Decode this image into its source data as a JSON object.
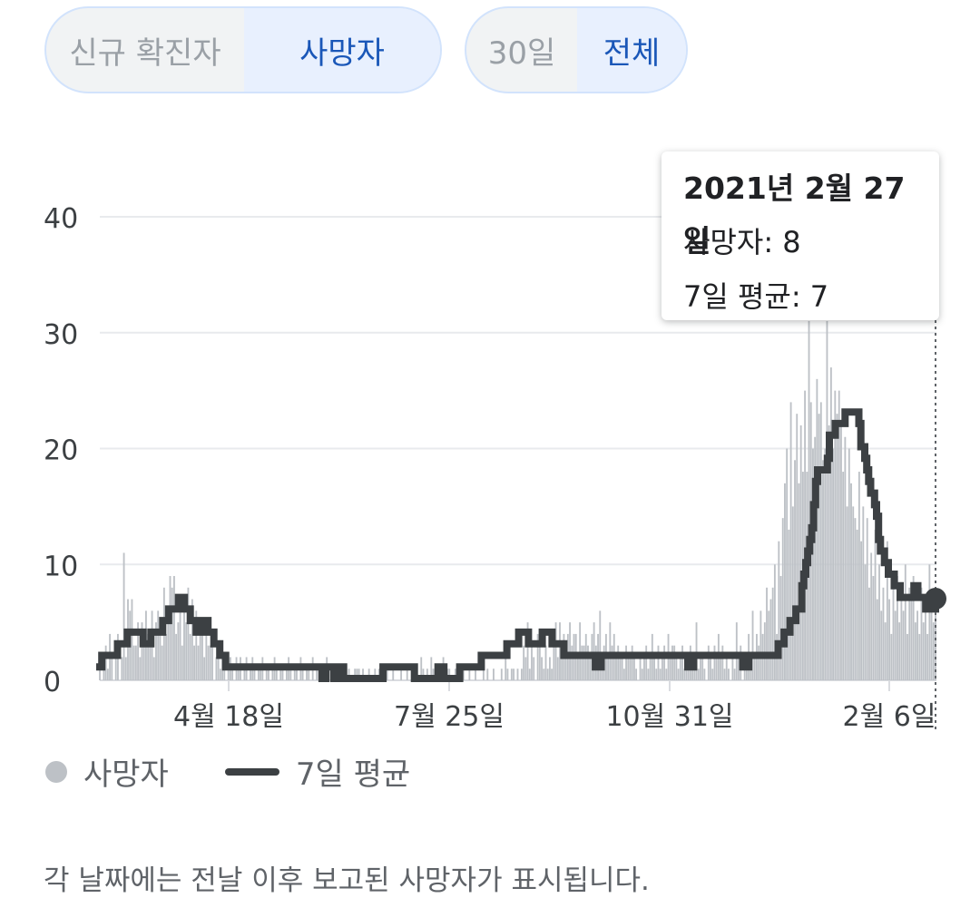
{
  "toggles": {
    "metric": {
      "options": [
        "신규 확진자",
        "사망자"
      ],
      "selected": "사망자"
    },
    "range": {
      "options": [
        "30일",
        "전체"
      ],
      "selected": "전체"
    }
  },
  "tooltip": {
    "date": "2021년 2월 27일",
    "deaths": "사망자: 8",
    "avg": "7일 평균: 7"
  },
  "legend": {
    "deaths": "사망자",
    "avg": "7일 평균"
  },
  "footnote": "각 날짜에는 전날 이후 보고된 사망자가 표시됩니다.",
  "colors": {
    "bars": "#bdc1c6",
    "line": "#3c4043",
    "accent": "#1a57b8",
    "grid": "#e8eaed"
  },
  "chart_data": {
    "type": "bar",
    "ylim": [
      0,
      40
    ],
    "yticks": [
      0,
      10,
      20,
      30,
      40
    ],
    "xticks": [
      "4월 18일",
      "7월 25일",
      "10월 31일",
      "2월 6일"
    ],
    "series": [
      {
        "name": "사망자",
        "values": [
          2,
          0,
          2,
          3,
          1,
          4,
          2,
          0,
          3,
          4,
          0,
          2,
          11,
          2,
          7,
          6,
          7,
          3,
          3,
          5,
          2,
          5,
          3,
          6,
          4,
          3,
          6,
          2,
          5,
          6,
          4,
          3,
          8,
          4,
          5,
          9,
          8,
          9,
          4,
          5,
          6,
          3,
          7,
          5,
          8,
          4,
          7,
          3,
          6,
          3,
          4,
          5,
          2,
          4,
          3,
          3,
          4,
          0,
          2,
          2,
          1,
          2,
          1,
          0,
          2,
          2,
          1,
          0,
          2,
          1,
          2,
          0,
          1,
          2,
          0,
          1,
          2,
          1,
          0,
          1,
          1,
          2,
          0,
          1,
          1,
          0,
          1,
          2,
          1,
          0,
          1,
          1,
          0,
          1,
          2,
          1,
          0,
          1,
          1,
          0,
          2,
          1,
          0,
          1,
          1,
          0,
          2,
          0,
          1,
          1,
          0,
          1,
          1,
          2,
          0,
          1,
          0,
          1,
          0,
          0,
          1,
          1,
          0,
          0,
          1,
          0,
          0,
          1,
          1,
          1,
          0,
          1,
          0,
          0,
          1,
          0,
          0,
          1,
          0,
          1,
          0,
          0,
          0,
          1,
          0,
          0,
          1,
          0,
          0,
          0,
          1,
          0,
          0,
          1,
          0,
          0,
          1,
          0,
          0,
          0,
          2,
          1,
          0,
          1,
          0,
          2,
          1,
          1,
          0,
          1,
          1,
          2,
          0,
          1,
          1,
          0,
          0,
          1,
          0,
          0,
          0,
          1,
          0,
          0,
          1,
          0,
          0,
          1,
          0,
          0,
          0,
          2,
          0,
          1,
          0,
          0,
          1,
          0,
          0,
          0,
          1,
          0,
          2,
          1,
          0,
          1,
          1,
          0,
          1,
          0,
          1,
          3,
          2,
          5,
          1,
          3,
          2,
          0,
          4,
          3,
          2,
          1,
          3,
          1,
          2,
          1,
          4,
          5,
          2,
          5,
          3,
          4,
          2,
          4,
          5,
          3,
          4,
          4,
          2,
          5,
          3,
          3,
          4,
          3,
          2,
          4,
          5,
          3,
          4,
          6,
          2,
          3,
          4,
          2,
          5,
          3,
          4,
          2,
          3,
          2,
          2,
          1,
          3,
          2,
          2,
          3,
          2,
          1,
          0,
          2,
          1,
          2,
          3,
          1,
          2,
          4,
          2,
          1,
          3,
          1,
          2,
          3,
          1,
          4,
          2,
          3,
          3,
          2,
          1,
          2,
          3,
          1,
          2,
          1,
          3,
          1,
          1,
          5,
          1,
          2,
          2,
          1,
          0,
          3,
          2,
          1,
          3,
          2,
          4,
          2,
          3,
          1,
          2,
          1,
          0,
          2,
          1,
          5,
          2,
          3,
          0,
          2,
          2,
          4,
          1,
          6,
          2,
          4,
          3,
          6,
          4,
          5,
          8,
          6,
          7,
          8,
          10,
          4,
          12,
          9,
          14,
          17,
          20,
          13,
          24,
          15,
          19,
          23,
          17,
          22,
          18,
          25,
          18,
          31,
          24,
          20,
          21,
          26,
          23,
          24,
          19,
          20,
          31,
          22,
          27,
          20,
          25,
          23,
          25,
          22,
          18,
          21,
          15,
          20,
          17,
          15,
          14,
          13,
          18,
          12,
          15,
          10,
          14,
          8,
          11,
          9,
          13,
          7,
          10,
          6,
          8,
          5,
          12,
          7,
          4,
          8,
          6,
          9,
          5,
          7,
          6,
          10,
          4,
          8,
          7,
          9,
          5,
          6,
          4,
          8,
          5,
          7,
          4,
          10,
          6,
          5,
          8
        ],
        "note": "daily values estimated from bar heights"
      },
      {
        "name": "7일 평균",
        "values": [
          1,
          2,
          2,
          2,
          2,
          2,
          2,
          2,
          2,
          3,
          3,
          3,
          3,
          3,
          4,
          4,
          4,
          4,
          4,
          4,
          4,
          4,
          3,
          3,
          3,
          3,
          4,
          4,
          4,
          4,
          4,
          4,
          5,
          5,
          5,
          6,
          6,
          6,
          6,
          6,
          7,
          7,
          7,
          6,
          6,
          6,
          5,
          5,
          5,
          4,
          4,
          4,
          5,
          5,
          5,
          4,
          4,
          4,
          3,
          3,
          3,
          2,
          2,
          2,
          1,
          1,
          1,
          1,
          1,
          1,
          1,
          1,
          1,
          1,
          1,
          1,
          1,
          1,
          1,
          1,
          1,
          1,
          1,
          1,
          1,
          1,
          1,
          1,
          1,
          1,
          1,
          1,
          1,
          1,
          1,
          1,
          1,
          1,
          1,
          1,
          1,
          1,
          1,
          1,
          1,
          1,
          1,
          1,
          1,
          1,
          1,
          1,
          1,
          0,
          0,
          1,
          1,
          1,
          1,
          0,
          0,
          0,
          1,
          1,
          0,
          0,
          0,
          0,
          0,
          0,
          0,
          0,
          0,
          0,
          0,
          0,
          0,
          0,
          0,
          0,
          0,
          0,
          0,
          0,
          1,
          1,
          1,
          1,
          1,
          1,
          1,
          1,
          1,
          1,
          1,
          1,
          1,
          1,
          1,
          1,
          0,
          0,
          0,
          0,
          0,
          0,
          0,
          0,
          0,
          0,
          0,
          0,
          1,
          1,
          1,
          0,
          0,
          0,
          0,
          0,
          0,
          0,
          0,
          1,
          1,
          1,
          1,
          1,
          1,
          1,
          1,
          1,
          1,
          1,
          2,
          2,
          2,
          2,
          2,
          2,
          2,
          2,
          2,
          2,
          2,
          2,
          2,
          3,
          3,
          3,
          3,
          3,
          3,
          4,
          4,
          4,
          4,
          4,
          3,
          3,
          3,
          3,
          3,
          3,
          3,
          4,
          4,
          4,
          4,
          4,
          3,
          3,
          3,
          3,
          3,
          3,
          2,
          2,
          2,
          2,
          2,
          2,
          2,
          2,
          2,
          2,
          2,
          2,
          2,
          2,
          2,
          2,
          1,
          1,
          1,
          2,
          2,
          2,
          2,
          2,
          2,
          2,
          2,
          2,
          2,
          2,
          2,
          2,
          2,
          2,
          2,
          2,
          2,
          2,
          2,
          2,
          2,
          2,
          2,
          2,
          2,
          2,
          2,
          2,
          2,
          2,
          2,
          2,
          2,
          2,
          2,
          2,
          2,
          2,
          2,
          2,
          2,
          2,
          2,
          1,
          1,
          1,
          2,
          2,
          2,
          2,
          2,
          2,
          2,
          2,
          2,
          2,
          2,
          2,
          2,
          2,
          2,
          2,
          2,
          2,
          2,
          2,
          2,
          2,
          2,
          2,
          2,
          1,
          1,
          1,
          2,
          2,
          2,
          2,
          2,
          2,
          2,
          2,
          2,
          2,
          2,
          2,
          2,
          2,
          2,
          3,
          3,
          3,
          4,
          4,
          4,
          5,
          5,
          5,
          6,
          6,
          6,
          8,
          9,
          10,
          11,
          12,
          13,
          15,
          17,
          18,
          18,
          18,
          18,
          18,
          19,
          21,
          21,
          21,
          22,
          22,
          22,
          22,
          22,
          23,
          23,
          23,
          23,
          23,
          23,
          23,
          22,
          20,
          20,
          19,
          18,
          17,
          16,
          16,
          15,
          14,
          12,
          11,
          11,
          10,
          10,
          9,
          9,
          9,
          8,
          8,
          8,
          7,
          7,
          7,
          7,
          7,
          7,
          7,
          8,
          8,
          7,
          7,
          7,
          7,
          6,
          6,
          6,
          6,
          6,
          7
        ]
      }
    ]
  }
}
